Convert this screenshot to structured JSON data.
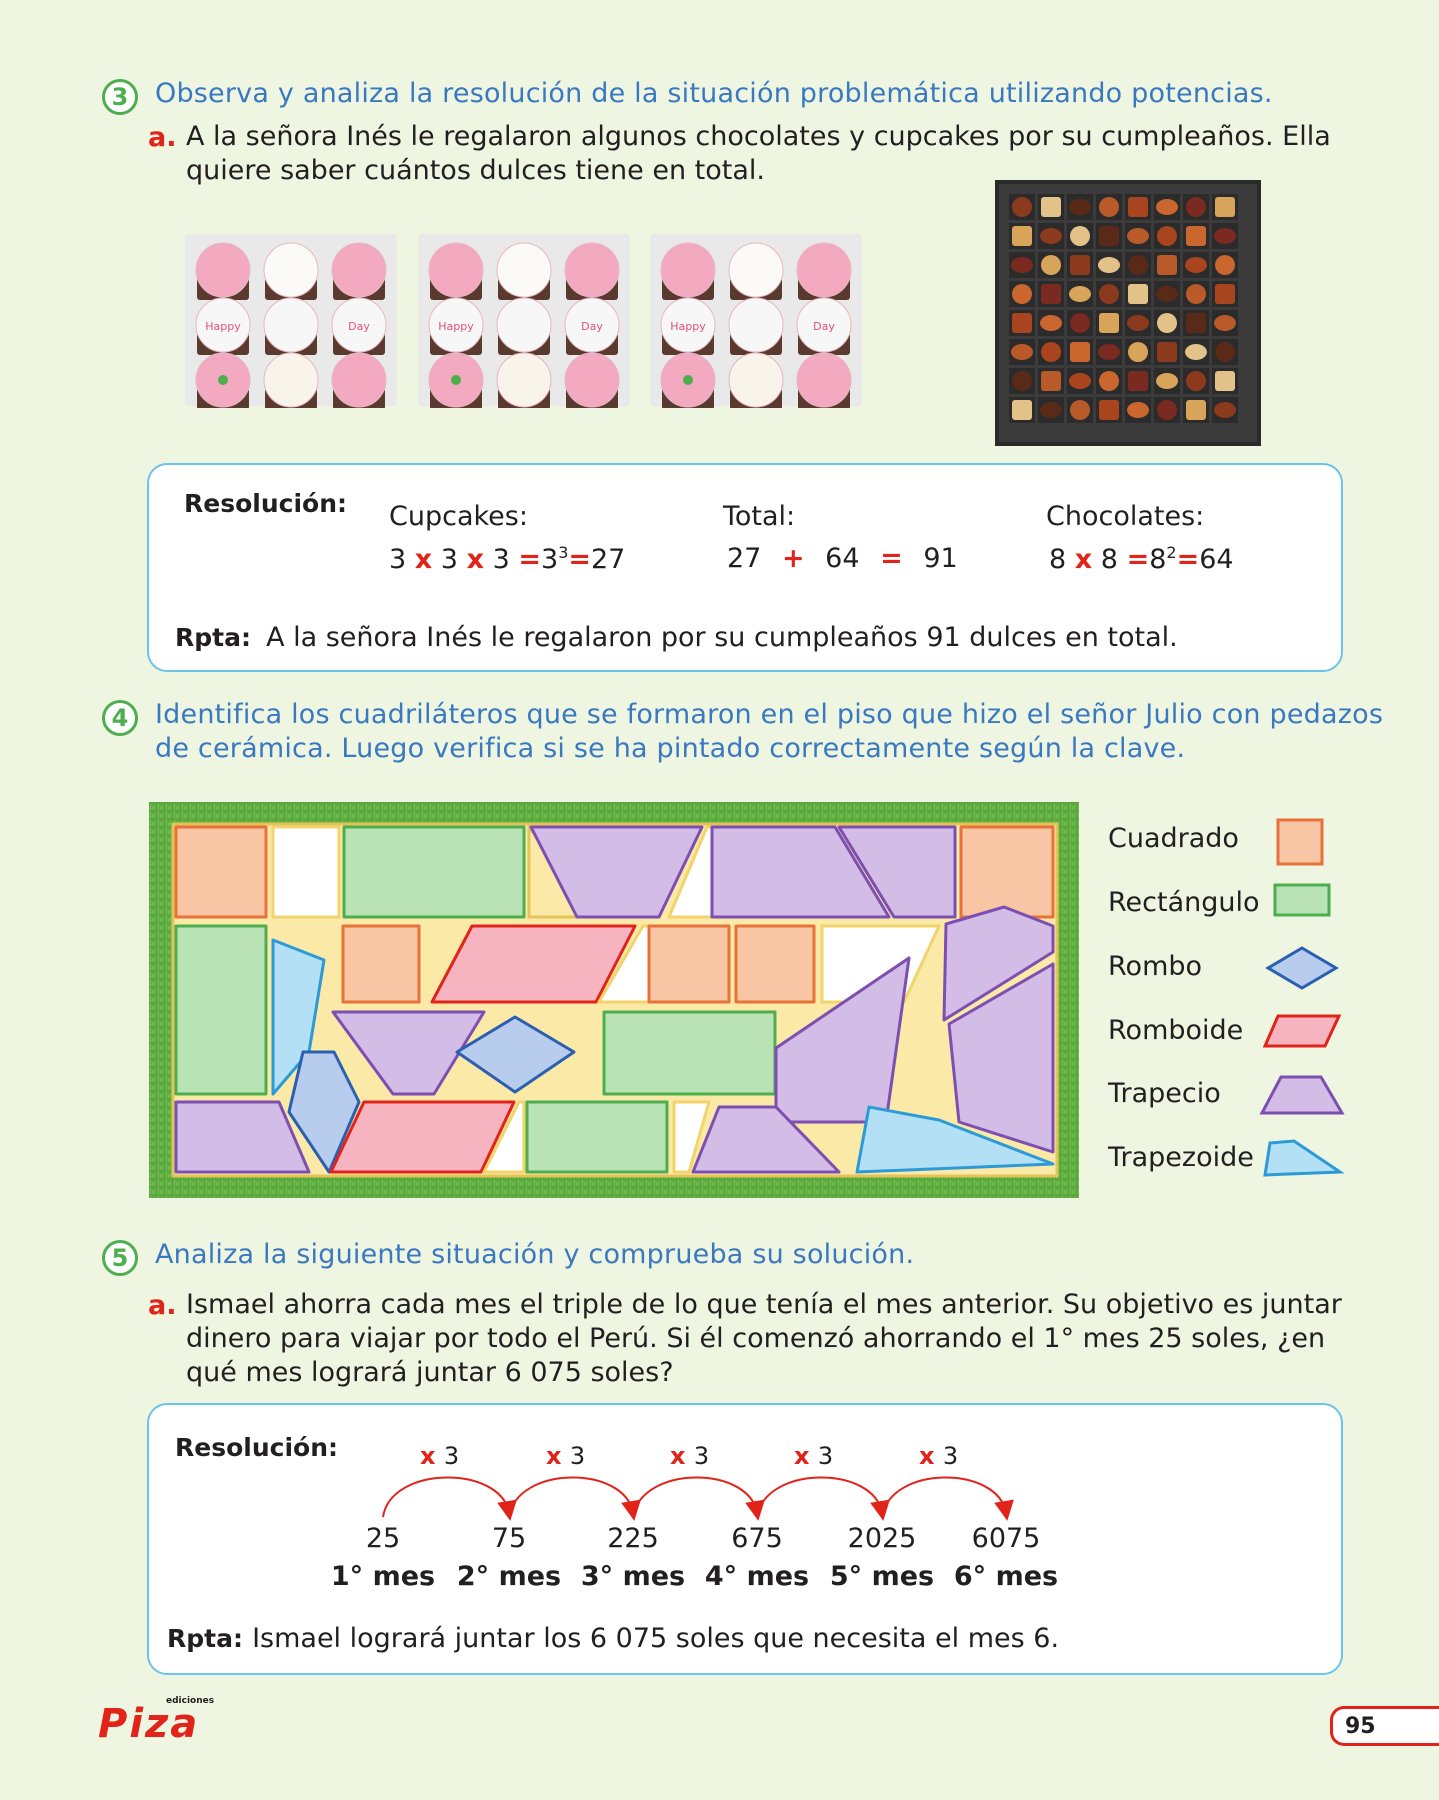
{
  "section3": {
    "number": "3",
    "instruction": "Observa y analiza la resolución de la situación problemática utilizando potencias.",
    "item_letter": "a.",
    "item_line1": "A la señora Inés le regalaron algunos chocolates y cupcakes por su cumpleaños. Ella",
    "item_line2": "quiere saber cuántos dulces tiene en total.",
    "cupcake_text_left": "Happy",
    "cupcake_text_right": "Day",
    "resolution_label": "Resolución:",
    "cupcakes_title": "Cupcakes:",
    "cupcakes_expr": {
      "a": "3",
      "b": "3",
      "c": "3",
      "base": "3",
      "exp": "3",
      "result": "27",
      "times": "x",
      "equals": "="
    },
    "total_title": "Total:",
    "total_expr": {
      "a": "27",
      "plus": "+",
      "b": "64",
      "equals": "=",
      "result": "91"
    },
    "chocolates_title": "Chocolates:",
    "chocolates_expr": {
      "a": "8",
      "b": "8",
      "base": "8",
      "exp": "2",
      "result": "64",
      "times": "x",
      "equals": "="
    },
    "answer_label": "Rpta:",
    "answer_text": "A la señora Inés le regalaron por su cumpleaños 91 dulces en total."
  },
  "section4": {
    "number": "4",
    "instruction_line1": "Identifica los cuadriláteros que se formaron en el piso que hizo el señor Julio con pedazos",
    "instruction_line2": "de cerámica. Luego verifica si se ha pintado correctamente según la clave.",
    "legend": [
      {
        "label": "Cuadrado",
        "shape": "square",
        "color": "#f8c6a4",
        "stroke": "#e8733a"
      },
      {
        "label": "Rectángulo",
        "shape": "rectangle",
        "color": "#b9e3b4",
        "stroke": "#4cae4c"
      },
      {
        "label": "Rombo",
        "shape": "rhombus",
        "color": "#b8cdee",
        "stroke": "#2b5fb0"
      },
      {
        "label": "Romboide",
        "shape": "rhomboid",
        "color": "#f6b3c0",
        "stroke": "#e2231a"
      },
      {
        "label": "Trapecio",
        "shape": "trapezoid",
        "color": "#d3bce6",
        "stroke": "#7c4fb0"
      },
      {
        "label": "Trapezoide",
        "shape": "trapezoid-irregular",
        "color": "#b3e0f5",
        "stroke": "#2c9ad6"
      }
    ],
    "colors": {
      "grass": "#5aa93c",
      "grout": "#d8d8d8",
      "yellow_fill": "#fbe9a8",
      "white_fill": "#ffffff"
    }
  },
  "section5": {
    "number": "5",
    "instruction": "Analiza la siguiente situación y comprueba su solución.",
    "item_letter": "a.",
    "item_line1": "Ismael ahorra cada mes el triple de lo que tenía el mes anterior. Su objetivo es juntar",
    "item_line2": "dinero para viajar  por todo el Perú. Si él comenzó ahorrando el 1° mes 25 soles, ¿en",
    "item_line3": "qué mes logrará juntar 6 075 soles?",
    "resolution_label": "Resolución:",
    "multiplier_symbol": "x",
    "multiplier_value": "3",
    "values": [
      "25",
      "75",
      "225",
      "675",
      "2025",
      "6075"
    ],
    "months": [
      "1° mes",
      "2° mes",
      "3° mes",
      "4° mes",
      "5° mes",
      "6° mes"
    ],
    "answer_label": "Rpta:",
    "answer_text": "Ismael logrará juntar los 6 075 soles que necesita el mes 6."
  },
  "footer": {
    "publisher_small": "ediciones",
    "publisher_name": "Piza",
    "page_number": "95"
  }
}
